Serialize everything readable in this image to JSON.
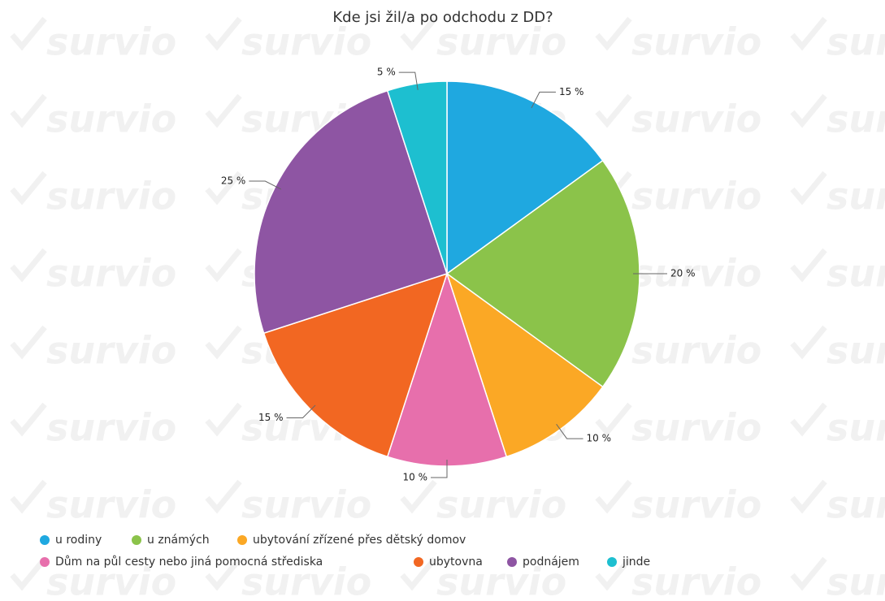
{
  "chart_data": {
    "type": "pie",
    "title": "Kde jsi žil/a po odchodu z DD?",
    "watermark": "survio",
    "categories": [
      "u rodiny",
      "u známých",
      "ubytování zřízené přes dětský domov",
      "Dům na půl cesty nebo jiná pomocná střediska",
      "ubytovna",
      "podnájem",
      "jinde"
    ],
    "values": [
      15,
      20,
      10,
      10,
      15,
      25,
      5
    ],
    "value_labels": [
      "15 %",
      "20 %",
      "10 %",
      "10 %",
      "15 %",
      "25 %",
      "5 %"
    ],
    "colors": [
      "#1fa8e0",
      "#8bc34a",
      "#fba825",
      "#e76fac",
      "#f26722",
      "#8e55a3",
      "#1dbfd0"
    ],
    "legend": "bottom"
  }
}
